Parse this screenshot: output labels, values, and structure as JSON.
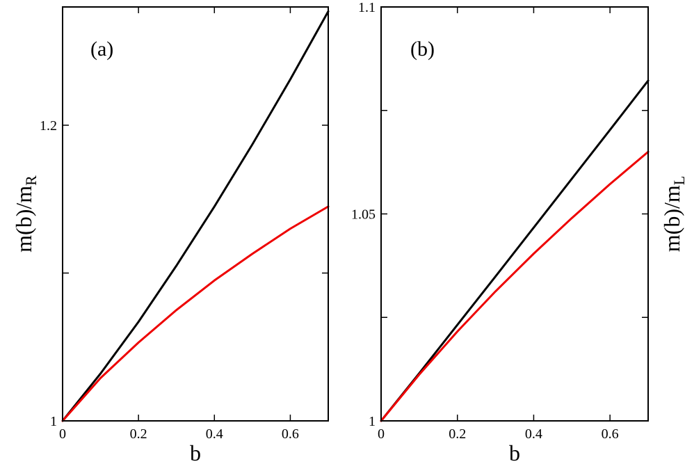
{
  "chart_data": [
    {
      "type": "line",
      "panel_label": "(a)",
      "xlabel": "b",
      "ylabel_main": "m(b)/m",
      "ylabel_sub": "R",
      "ylabel_side": "left",
      "xlim": [
        0,
        0.7
      ],
      "ylim": [
        1.0,
        1.28
      ],
      "xticks": [
        0,
        0.2,
        0.4,
        0.6
      ],
      "xtick_labels": [
        "0",
        "0.2",
        "0.4",
        "0.6"
      ],
      "yticks": [
        1.0,
        1.1,
        1.2
      ],
      "ytick_labels": [
        "1",
        "",
        "1.2"
      ],
      "grid": false,
      "series": [
        {
          "color": "#000000",
          "x": [
            0,
            0.1,
            0.2,
            0.3,
            0.4,
            0.5,
            0.6,
            0.7
          ],
          "y": [
            1.0,
            1.032,
            1.067,
            1.105,
            1.145,
            1.187,
            1.231,
            1.277
          ]
        },
        {
          "color": "#ee0000",
          "x": [
            0,
            0.1,
            0.2,
            0.3,
            0.4,
            0.5,
            0.6,
            0.7
          ],
          "y": [
            1.0,
            1.029,
            1.053,
            1.075,
            1.095,
            1.113,
            1.13,
            1.145
          ]
        }
      ]
    },
    {
      "type": "line",
      "panel_label": "(b)",
      "xlabel": "b",
      "ylabel_main": "m(b)/m",
      "ylabel_sub": "L",
      "ylabel_side": "right",
      "xlim": [
        0,
        0.7
      ],
      "ylim": [
        1.0,
        1.1
      ],
      "xticks": [
        0,
        0.2,
        0.4,
        0.6
      ],
      "xtick_labels": [
        "0",
        "0.2",
        "0.4",
        "0.6"
      ],
      "yticks": [
        1.0,
        1.025,
        1.05,
        1.075,
        1.1
      ],
      "ytick_labels": [
        "1",
        "",
        "1.05",
        "",
        "1.1"
      ],
      "grid": false,
      "series": [
        {
          "color": "#000000",
          "x": [
            0,
            0.1,
            0.2,
            0.3,
            0.4,
            0.5,
            0.6,
            0.7
          ],
          "y": [
            1.0,
            1.0115,
            1.0232,
            1.0349,
            1.0467,
            1.0585,
            1.0703,
            1.0822
          ]
        },
        {
          "color": "#ee0000",
          "x": [
            0,
            0.1,
            0.2,
            0.3,
            0.4,
            0.5,
            0.6,
            0.7
          ],
          "y": [
            1.0,
            1.0112,
            1.0216,
            1.0313,
            1.0404,
            1.049,
            1.0572,
            1.065
          ]
        }
      ]
    }
  ]
}
